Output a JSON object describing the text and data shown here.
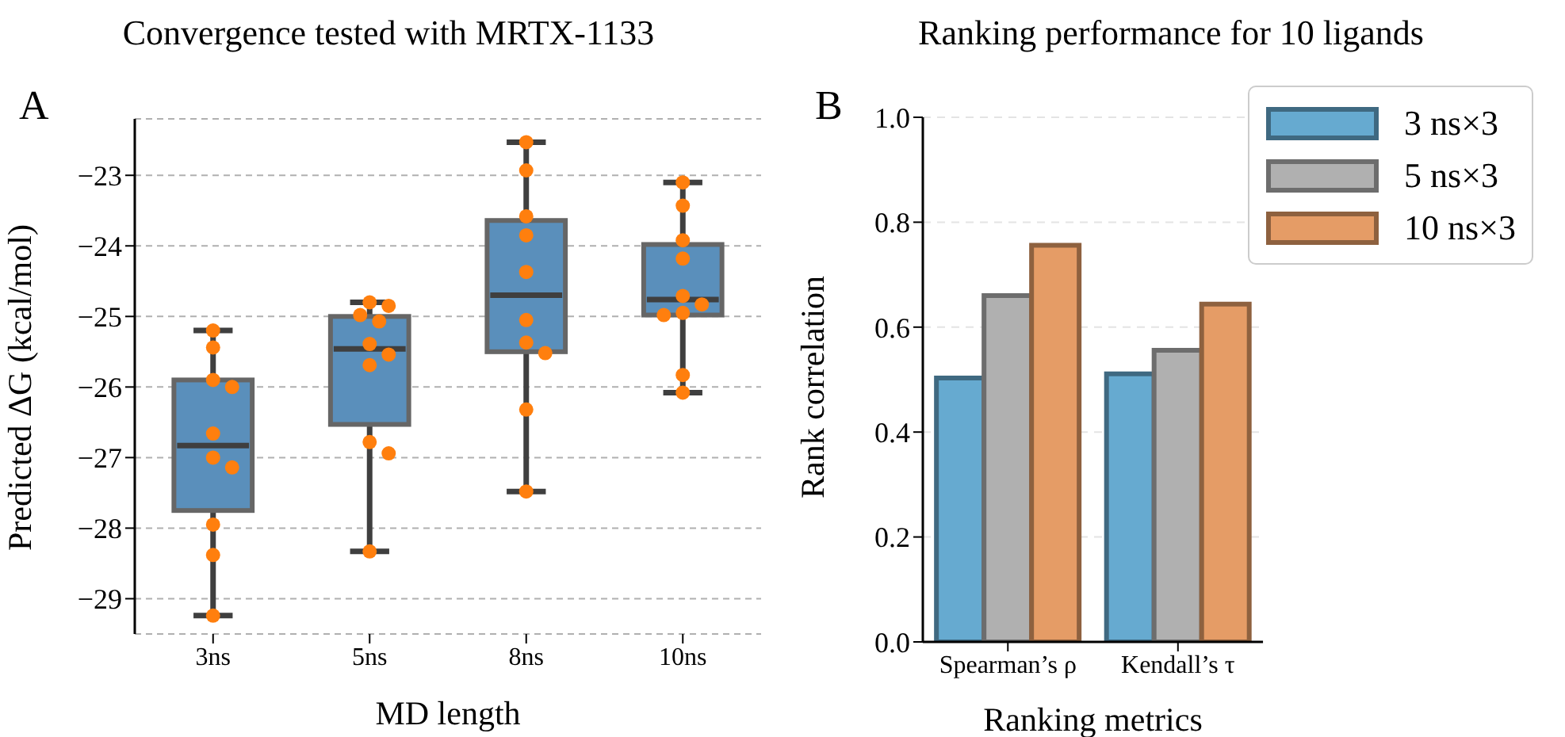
{
  "chart_data": [
    {
      "type": "box",
      "title": "Convergence tested with MRTX-1133",
      "xlabel": "MD length",
      "ylabel": "Predicted ΔG (kcal/mol)",
      "annotations": [
        "A"
      ],
      "categories": [
        "3ns",
        "5ns",
        "8ns",
        "10ns"
      ],
      "color": "#5a8fbb",
      "boxes": [
        {
          "low": -29.24,
          "q1": -27.75,
          "median": -26.83,
          "q3": -25.9,
          "high": -25.2
        },
        {
          "low": -28.33,
          "q1": -26.53,
          "median": -25.46,
          "q3": -25.0,
          "high": -24.8
        },
        {
          "low": -27.48,
          "q1": -25.5,
          "median": -24.7,
          "q3": -23.64,
          "high": -22.53
        },
        {
          "low": -26.08,
          "q1": -24.98,
          "median": -24.76,
          "q3": -23.98,
          "high": -23.1
        }
      ],
      "series": [
        {
          "type": "scatter",
          "color": "#ff7f0e",
          "x": [
            "3ns",
            "3ns",
            "3ns",
            "3ns",
            "3ns",
            "3ns",
            "3ns",
            "3ns",
            "3ns",
            "3ns",
            "5ns",
            "5ns",
            "5ns",
            "5ns",
            "5ns",
            "5ns",
            "5ns",
            "5ns",
            "5ns",
            "5ns",
            "8ns",
            "8ns",
            "8ns",
            "8ns",
            "8ns",
            "8ns",
            "8ns",
            "8ns",
            "8ns",
            "8ns",
            "10ns",
            "10ns",
            "10ns",
            "10ns",
            "10ns",
            "10ns",
            "10ns",
            "10ns",
            "10ns",
            "10ns"
          ],
          "values": [
            -25.2,
            -25.44,
            -25.9,
            -26.0,
            -26.66,
            -27.0,
            -27.14,
            -27.95,
            -28.38,
            -29.24,
            -24.8,
            -24.85,
            -24.98,
            -25.07,
            -25.39,
            -25.54,
            -25.69,
            -26.78,
            -26.94,
            -28.33,
            -22.53,
            -22.93,
            -23.58,
            -23.85,
            -24.37,
            -25.05,
            -25.37,
            -25.52,
            -26.32,
            -27.48,
            -23.1,
            -23.43,
            -23.92,
            -24.18,
            -24.71,
            -24.83,
            -24.95,
            -24.98,
            -25.83,
            -26.08
          ]
        }
      ],
      "ylim": [
        -29.5,
        -22.2
      ],
      "yticks": [
        {
          "value": -29,
          "label": "−29"
        },
        {
          "value": -28,
          "label": "−28"
        },
        {
          "value": -27,
          "label": "−27"
        },
        {
          "value": -26,
          "label": "−26"
        },
        {
          "value": -25,
          "label": "−25"
        },
        {
          "value": -24,
          "label": "−24"
        },
        {
          "value": -23,
          "label": "−23"
        }
      ],
      "grid": "y",
      "marker": "circle"
    },
    {
      "type": "bar",
      "title": "Ranking performance for 10 ligands",
      "xlabel": "Ranking metrics",
      "ylabel": "Rank correlation",
      "annotations": [
        "B"
      ],
      "categories": [
        "Spearman’s ρ",
        "Kendall’s τ"
      ],
      "series": [
        {
          "name": "3 ns×3",
          "color": "#66aad0",
          "values": [
            0.503,
            0.511
          ]
        },
        {
          "name": "5 ns×3",
          "color": "#b0b0b0",
          "values": [
            0.66,
            0.556
          ]
        },
        {
          "name": "10 ns×3",
          "color": "#e59c66",
          "values": [
            0.756,
            0.644
          ]
        }
      ],
      "ylim": [
        0,
        1
      ],
      "yticks": [
        {
          "value": 0,
          "label": "0.0"
        },
        {
          "value": 0.2,
          "label": "0.2"
        },
        {
          "value": 0.4,
          "label": "0.4"
        },
        {
          "value": 0.6,
          "label": "0.6"
        },
        {
          "value": 0.8,
          "label": "0.8"
        },
        {
          "value": 1,
          "label": "1.0"
        }
      ],
      "grid": "y",
      "legend": "top right"
    }
  ]
}
